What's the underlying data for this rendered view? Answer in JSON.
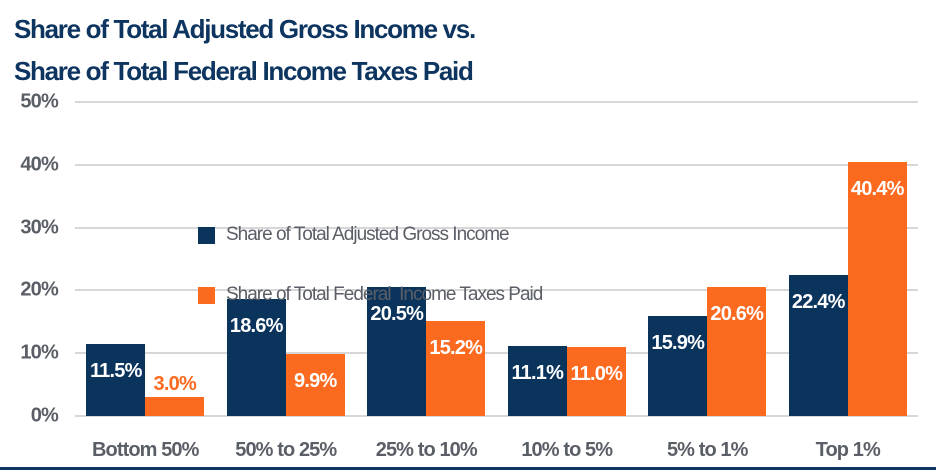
{
  "page": {
    "background": "#FFFFFF",
    "bottom_rule_color": "#0D3560"
  },
  "chart_data": {
    "type": "bar",
    "title_lines": [
      "Share of Total Adjusted Gross Income vs.",
      "Share of Total Federal Income Taxes Paid"
    ],
    "title_color": "#0D3560",
    "categories": [
      "Bottom 50%",
      "50% to 25%",
      "25% to 10%",
      "10% to 5%",
      "5% to 1%",
      "Top 1%"
    ],
    "series": [
      {
        "name": "Share of Total Adjusted Gross Income",
        "color": "#0A345C",
        "values": [
          11.5,
          18.6,
          20.5,
          11.1,
          15.9,
          22.4
        ],
        "labels": [
          "11.5%",
          "18.6%",
          "20.5%",
          "11.1%",
          "15.9%",
          "22.4%"
        ]
      },
      {
        "name": "Share of Total Federal  Income Taxes Paid",
        "color": "#FC6A20",
        "values": [
          3.0,
          9.9,
          15.2,
          11.0,
          20.6,
          40.4
        ],
        "labels": [
          "3.0%",
          "9.9%",
          "15.2%",
          "11.0%",
          "20.6%",
          "40.4%"
        ]
      }
    ],
    "y_tick_labels": [
      "50%",
      "40%",
      "30%",
      "20%",
      "10%",
      "0%"
    ],
    "ylim": [
      0,
      50
    ],
    "grid": true,
    "gridline_color": "#D7D7D7",
    "axis_text_color": "#5A5E66",
    "legend_position": "top-left-inside",
    "xlabel": "",
    "ylabel": ""
  }
}
